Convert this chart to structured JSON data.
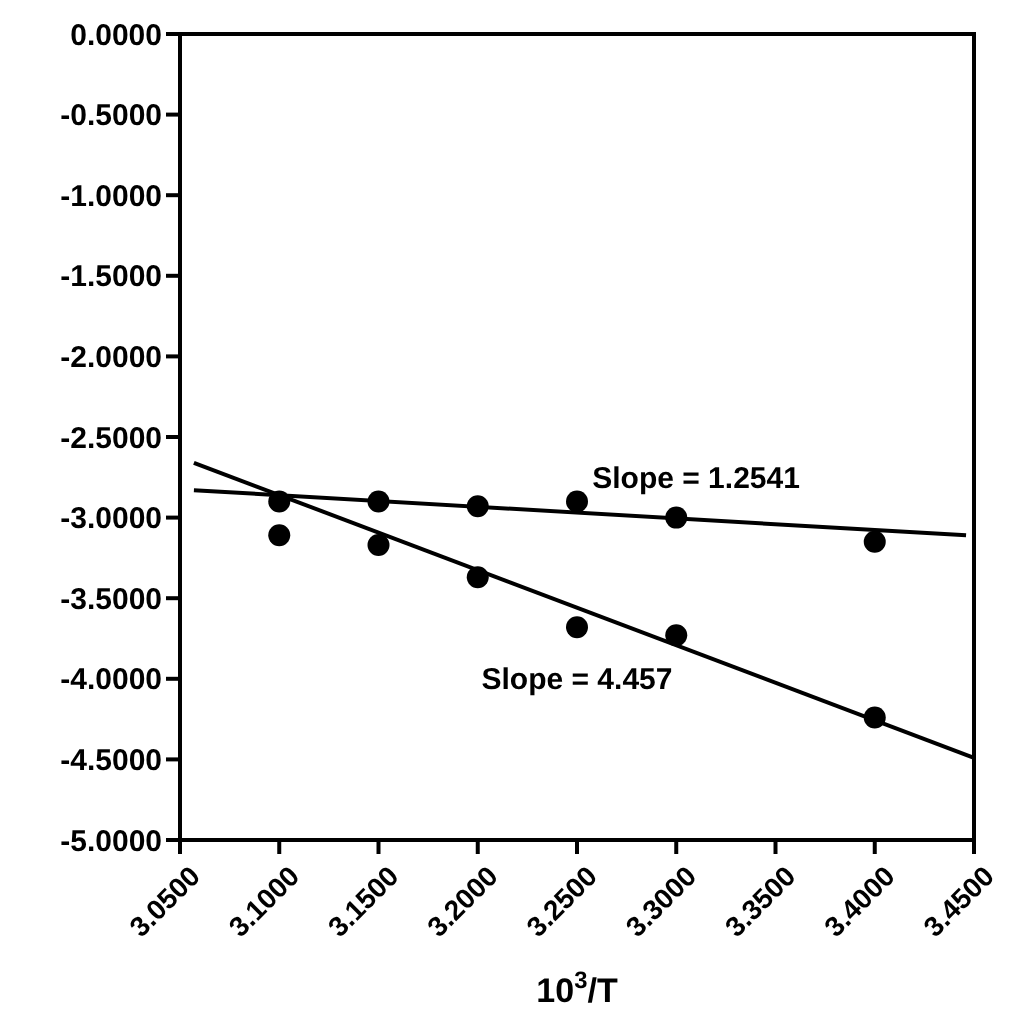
{
  "chart_data": {
    "type": "scatter",
    "xlabel": "10$^{3}$/T",
    "xlim": [
      3.05,
      3.45
    ],
    "xticks": [
      {
        "value": 3.05,
        "label": "3.0500"
      },
      {
        "value": 3.1,
        "label": "3.1000"
      },
      {
        "value": 3.15,
        "label": "3.1500"
      },
      {
        "value": 3.2,
        "label": "3.2000"
      },
      {
        "value": 3.25,
        "label": "3.2500"
      },
      {
        "value": 3.3,
        "label": "3.3000"
      },
      {
        "value": 3.35,
        "label": "3.3500"
      },
      {
        "value": 3.4,
        "label": "3.4000"
      },
      {
        "value": 3.45,
        "label": "3.4500"
      }
    ],
    "ylim": [
      -5,
      0
    ],
    "yticks": [
      {
        "value": 0,
        "label": "0.0000"
      },
      {
        "value": -0.5,
        "label": "-0.5000"
      },
      {
        "value": -1,
        "label": "-1.0000"
      },
      {
        "value": -1.5,
        "label": "-1.5000"
      },
      {
        "value": -2,
        "label": "-2.0000"
      },
      {
        "value": -2.5,
        "label": "-2.5000"
      },
      {
        "value": -3,
        "label": "-3.0000"
      },
      {
        "value": -3.5,
        "label": "-3.5000"
      },
      {
        "value": -4,
        "label": "-4.0000"
      },
      {
        "value": -4.5,
        "label": "-4.5000"
      },
      {
        "value": -5,
        "label": "-5.0000"
      }
    ],
    "x": [
      3.1,
      3.15,
      3.2,
      3.25,
      3.3,
      3.4
    ],
    "grid": false,
    "marker": "circle",
    "series": [
      {
        "color": "#000000",
        "values": [
          -2.9,
          -2.9,
          -2.93,
          -2.9,
          -3.0,
          -3.15
        ]
      },
      {
        "color": "#000000",
        "values": [
          -3.11,
          -3.17,
          -3.37,
          -3.68,
          -3.73,
          -4.24
        ]
      },
      {
        "type": "line",
        "color": "#000000",
        "marker": "none",
        "line_style": "solid",
        "x": [
          3.057,
          3.446
        ],
        "values": [
          -2.83,
          -3.11
        ]
      },
      {
        "type": "line",
        "color": "#000000",
        "marker": "none",
        "line_style": "solid",
        "x": [
          3.057,
          3.45
        ],
        "values": [
          -2.66,
          -4.49
        ]
      }
    ],
    "annotations": [
      "Slope = 1.2541",
      "Slope = 4.457"
    ]
  }
}
